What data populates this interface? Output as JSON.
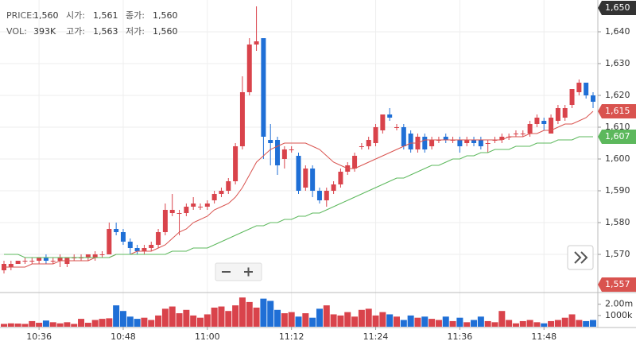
{
  "chart_data": {
    "type": "candlestick",
    "info": [
      [
        {
          "label": "PRICE:",
          "value": "1,560"
        },
        {
          "label": "시가:",
          "value": "1,561"
        },
        {
          "label": "종가:",
          "value": "1,560"
        }
      ],
      [
        {
          "label": "VOL:",
          "value": "393K"
        },
        {
          "label": "고가:",
          "value": "1,563"
        },
        {
          "label": "저가:",
          "value": "1,560"
        }
      ]
    ],
    "categories": [
      null,
      null,
      null,
      null,
      null,
      "10:36",
      null,
      null,
      null,
      null,
      null,
      null,
      null,
      null,
      null,
      null,
      null,
      "10:48",
      null,
      null,
      null,
      null,
      null,
      null,
      null,
      null,
      null,
      null,
      null,
      "11:00",
      null,
      null,
      null,
      null,
      null,
      null,
      null,
      null,
      null,
      null,
      null,
      "11:12",
      null,
      null,
      null,
      null,
      null,
      null,
      null,
      null,
      null,
      null,
      null,
      "11:24",
      null,
      null,
      null,
      null,
      null,
      null,
      null,
      null,
      null,
      null,
      null,
      "11:36",
      null,
      null,
      null,
      null,
      null,
      null,
      null,
      null,
      null,
      null,
      null,
      "11:48",
      null,
      null,
      null,
      null,
      null,
      null,
      null
    ],
    "open": [
      1565,
      1566,
      1567,
      1568,
      1568,
      1568,
      1569,
      1568,
      1568,
      1567,
      1569,
      1569,
      1569,
      1569,
      1570,
      1570,
      1578,
      1577,
      1574,
      1572,
      1571,
      1572,
      1573,
      1577,
      1583,
      1583,
      1583,
      1585,
      1585,
      1585,
      1587,
      1589,
      1590,
      1593,
      1604,
      1621,
      1636,
      1638,
      1606,
      1606,
      1600,
      1603,
      1601,
      1591,
      1597,
      1590,
      1587,
      1590,
      1592,
      1596,
      1597,
      1604,
      1604,
      1605,
      1609,
      1614,
      1610,
      1610,
      1608,
      1603,
      1607,
      1604,
      1606,
      1607,
      1606,
      1606,
      1605,
      1606,
      1606,
      1605,
      1606,
      1606,
      1607,
      1608,
      1608,
      1608,
      1611,
      1612,
      1608,
      1612,
      1613,
      1617,
      1621,
      1624,
      1620
    ],
    "high": [
      1568,
      1568,
      1568,
      1569,
      1569,
      1569,
      1570,
      1569,
      1570,
      1569,
      1570,
      1570,
      1570,
      1571,
      1571,
      1580,
      1580,
      1578,
      1575,
      1573,
      1573,
      1574,
      1578,
      1586,
      1589,
      1584,
      1586,
      1588,
      1586,
      1587,
      1590,
      1591,
      1594,
      1605,
      1626,
      1638,
      1648,
      1638,
      1611,
      1607,
      1604,
      1604,
      1602,
      1598,
      1598,
      1591,
      1591,
      1593,
      1597,
      1599,
      1602,
      1605,
      1607,
      1611,
      1614,
      1616,
      1611,
      1611,
      1609,
      1608,
      1608,
      1607,
      1607,
      1608,
      1607,
      1607,
      1607,
      1607,
      1607,
      1606,
      1607,
      1608,
      1608,
      1609,
      1609,
      1612,
      1614,
      1613,
      1614,
      1617,
      1617,
      1622,
      1625,
      1624,
      1621
    ],
    "low": [
      1564,
      1565,
      1567,
      1567,
      1567,
      1567,
      1567,
      1567,
      1566,
      1566,
      1568,
      1568,
      1568,
      1568,
      1569,
      1570,
      1576,
      1573,
      1570,
      1570,
      1570,
      1571,
      1572,
      1576,
      1582,
      1576,
      1582,
      1584,
      1584,
      1584,
      1586,
      1588,
      1589,
      1592,
      1603,
      1620,
      1634,
      1600,
      1598,
      1595,
      1597,
      1602,
      1589,
      1590,
      1588,
      1586,
      1585,
      1589,
      1591,
      1595,
      1596,
      1603,
      1603,
      1604,
      1608,
      1612,
      1609,
      1603,
      1602,
      1602,
      1602,
      1603,
      1605,
      1605,
      1605,
      1602,
      1604,
      1604,
      1603,
      1602,
      1605,
      1605,
      1606,
      1607,
      1607,
      1607,
      1610,
      1609,
      1608,
      1611,
      1612,
      1616,
      1620,
      1619,
      1616
    ],
    "close": [
      1567,
      1567,
      1568,
      1568,
      1568,
      1569,
      1568,
      1568,
      1569,
      1569,
      1569,
      1569,
      1570,
      1570,
      1570,
      1578,
      1577,
      1574,
      1572,
      1571,
      1572,
      1573,
      1577,
      1584,
      1584,
      1583,
      1585,
      1586,
      1585,
      1586,
      1589,
      1590,
      1593,
      1604,
      1621,
      1636,
      1637,
      1607,
      1605,
      1598,
      1603,
      1603,
      1590,
      1597,
      1590,
      1587,
      1590,
      1592,
      1596,
      1598,
      1601,
      1604,
      1606,
      1610,
      1614,
      1613,
      1610,
      1604,
      1603,
      1607,
      1603,
      1606,
      1606,
      1606,
      1606,
      1604,
      1606,
      1605,
      1604,
      1605,
      1606,
      1607,
      1607,
      1608,
      1608,
      1611,
      1613,
      1611,
      1613,
      1616,
      1616,
      1622,
      1624,
      1620,
      1618
    ],
    "volume": [
      250000,
      300000,
      280000,
      250000,
      500000,
      350000,
      550000,
      400000,
      300000,
      400000,
      250000,
      700000,
      350000,
      600000,
      700000,
      750000,
      1900000,
      1400000,
      900000,
      700000,
      800000,
      600000,
      1000000,
      1600000,
      1800000,
      1200000,
      1500000,
      1000000,
      800000,
      1100000,
      1700000,
      1800000,
      1400000,
      1900000,
      2600000,
      2200000,
      1700000,
      2500000,
      2300000,
      1500000,
      1200000,
      1300000,
      900000,
      1200000,
      800000,
      1600000,
      1900000,
      1100000,
      1000000,
      1300000,
      900000,
      1500000,
      1600000,
      1000000,
      1300000,
      1100000,
      900000,
      600000,
      1000000,
      800000,
      900000,
      700000,
      600000,
      900000,
      500000,
      800000,
      400000,
      600000,
      900000,
      500000,
      400000,
      1400000,
      600000,
      300000,
      500000,
      600000,
      400000,
      300000,
      500000,
      600000,
      800000,
      1100000,
      600000,
      500000,
      600000
    ],
    "moving_averages": [
      {
        "color": "#d9534f",
        "values": [
          1566,
          1566,
          1566,
          1566,
          1567,
          1567,
          1567,
          1567,
          1568,
          1568,
          1568,
          1568,
          1568,
          1569,
          1569,
          1569,
          1570,
          1570,
          1570,
          1571,
          1571,
          1571,
          1572,
          1573,
          1575,
          1577,
          1578,
          1580,
          1581,
          1582,
          1584,
          1585,
          1586,
          1588,
          1591,
          1595,
          1599,
          1601,
          1603,
          1604,
          1605,
          1605,
          1605,
          1605,
          1604,
          1603,
          1601,
          1599,
          1598,
          1597,
          1597,
          1598,
          1599,
          1600,
          1601,
          1602,
          1603,
          1604,
          1605,
          1605,
          1606,
          1606,
          1606,
          1606,
          1606,
          1606,
          1606,
          1606,
          1606,
          1606,
          1606,
          1606,
          1607,
          1607,
          1607,
          1608,
          1608,
          1609,
          1609,
          1610,
          1611,
          1611,
          1612,
          1613,
          1615
        ]
      },
      {
        "color": "#5cb85c",
        "values": [
          1570,
          1570,
          1570,
          1569,
          1569,
          1569,
          1569,
          1569,
          1569,
          1569,
          1569,
          1569,
          1569,
          1569,
          1569,
          1569,
          1570,
          1570,
          1570,
          1570,
          1570,
          1570,
          1570,
          1570,
          1571,
          1571,
          1571,
          1572,
          1572,
          1572,
          1573,
          1574,
          1575,
          1576,
          1577,
          1578,
          1579,
          1579,
          1580,
          1580,
          1581,
          1581,
          1582,
          1582,
          1583,
          1583,
          1584,
          1585,
          1586,
          1587,
          1588,
          1589,
          1590,
          1591,
          1592,
          1593,
          1594,
          1594,
          1595,
          1596,
          1597,
          1598,
          1598,
          1599,
          1600,
          1600,
          1601,
          1601,
          1602,
          1602,
          1603,
          1603,
          1603,
          1604,
          1604,
          1604,
          1605,
          1605,
          1605,
          1606,
          1606,
          1606,
          1607,
          1607,
          1607
        ]
      }
    ],
    "up_color": "#d9434b",
    "down_color": "#1f6fd6",
    "ylim": [
      1558,
      1650
    ],
    "yticks": [
      {
        "value": 1570,
        "label": "1,570"
      },
      {
        "value": 1580,
        "label": "1,580"
      },
      {
        "value": 1590,
        "label": "1,590"
      },
      {
        "value": 1600,
        "label": "1,600"
      },
      {
        "value": 1610,
        "label": "1,610"
      },
      {
        "value": 1620,
        "label": "1,620"
      },
      {
        "value": 1630,
        "label": "1,630"
      },
      {
        "value": 1640,
        "label": "1,640"
      }
    ],
    "price_markers": [
      {
        "value": 1650,
        "label": "1,650",
        "color": "#333333"
      },
      {
        "value": 1615,
        "label": "1,615",
        "color": "#d9534f"
      },
      {
        "value": 1607,
        "label": "1,607",
        "color": "#5cb85c"
      },
      {
        "value": 1557,
        "label": "1,557",
        "color": "#d9534f"
      }
    ],
    "volume_ylim": [
      0,
      2900000
    ],
    "volume_ticks": [
      {
        "value": 2000000,
        "label": "2.00m"
      },
      {
        "value": 1000000,
        "label": "1000k"
      }
    ],
    "grid": true
  }
}
